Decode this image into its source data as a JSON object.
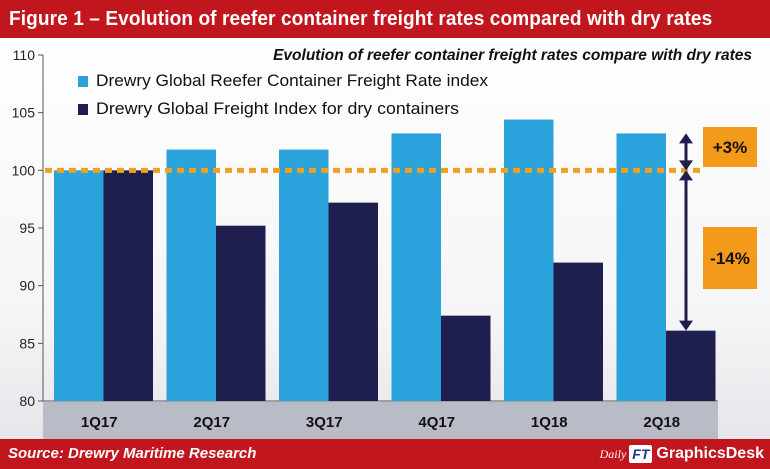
{
  "header": {
    "title": "Figure 1 – Evolution of reefer container freight rates compared with dry rates"
  },
  "footer": {
    "source": "Source: Drewry Maritime Research",
    "brand_daily": "Daily",
    "brand_ft": "FT",
    "brand_desk": "GraphicsDesk"
  },
  "colors": {
    "header_bg": "#c2161f",
    "reefer": "#2aa2dc",
    "dry": "#1e1f4e",
    "reference_line": "#f0a020",
    "annotation_box": "#f39a1a",
    "arrow": "#1e1f4e"
  },
  "chart_data": {
    "type": "bar",
    "title": "Evolution of reefer container freight rates compare with dry rates",
    "categories": [
      "1Q17",
      "2Q17",
      "3Q17",
      "4Q17",
      "1Q18",
      "2Q18"
    ],
    "series": [
      {
        "name": "Drewry Global Reefer Container Freight Rate index",
        "values": [
          100,
          101.8,
          101.8,
          103.2,
          104.4,
          103.2
        ]
      },
      {
        "name": "Drewry Global Freight Index for dry containers",
        "values": [
          100,
          95.2,
          97.2,
          87.4,
          92.0,
          86.1
        ]
      }
    ],
    "ylim": [
      80,
      110
    ],
    "yticks": [
      80,
      85,
      90,
      95,
      100,
      105,
      110
    ],
    "xlabel": "",
    "ylabel": "",
    "grid": false,
    "legend_position": "top-left",
    "reference_line": {
      "value": 100,
      "style": "dashed"
    },
    "annotations": [
      {
        "label": "+3%",
        "from": 100,
        "to": 103.2
      },
      {
        "label": "-14%",
        "from": 100,
        "to": 86.1
      }
    ]
  }
}
